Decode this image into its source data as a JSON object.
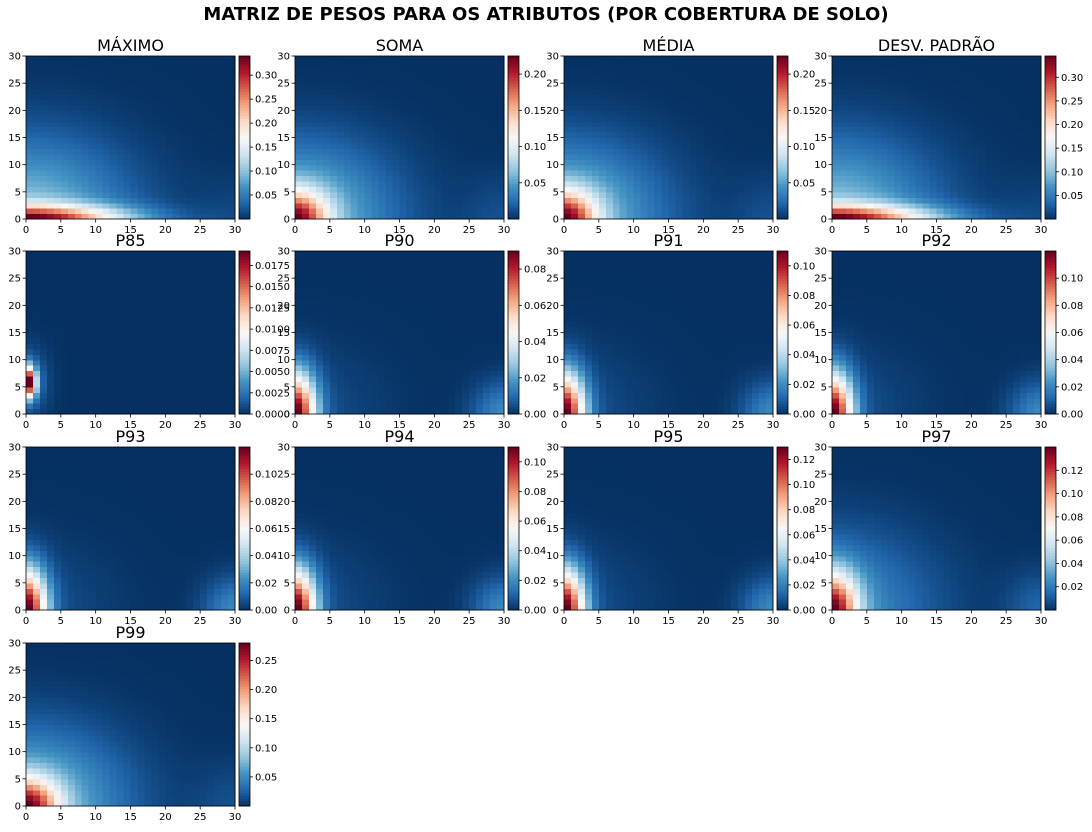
{
  "figure": {
    "title": "MATRIZ DE PESOS PARA OS ATRIBUTOS (POR COBERTURA DE SOLO)",
    "colormap": "RdBu_r",
    "colors": [
      "#053061",
      "#2166ac",
      "#4393c3",
      "#92c5de",
      "#d1e5f0",
      "#f7f7f7",
      "#fddbc7",
      "#f4a582",
      "#d6604d",
      "#b2182b",
      "#67001f"
    ]
  },
  "chart_data": [
    {
      "type": "heatmap",
      "title": "MÁXIMO",
      "xlim": [
        0,
        30
      ],
      "ylim": [
        0,
        30
      ],
      "xticks": [
        "0",
        "5",
        "10",
        "15",
        "20",
        "25",
        "30"
      ],
      "yticks": [
        "0",
        "5",
        "10",
        "15",
        "20",
        "25",
        "30"
      ],
      "colorbar_range": [
        0.0,
        0.34
      ],
      "colorbar_ticks": [
        "0.05",
        "0.10",
        "0.15",
        "0.20",
        "0.25",
        "0.30"
      ],
      "colorbar_tick_values": [
        0.05,
        0.1,
        0.15,
        0.2,
        0.25,
        0.3
      ],
      "pattern": "wide_base"
    },
    {
      "type": "heatmap",
      "title": "SOMA",
      "xlim": [
        0,
        30
      ],
      "ylim": [
        0,
        30
      ],
      "xticks": [
        "0",
        "5",
        "10",
        "15",
        "20",
        "25",
        "30"
      ],
      "yticks": [
        "0",
        "5",
        "10",
        "15",
        "20",
        "25",
        "30"
      ],
      "colorbar_range": [
        0.0,
        0.225
      ],
      "colorbar_ticks": [
        "0.05",
        "0.10",
        "0.15",
        "0.20"
      ],
      "colorbar_tick_values": [
        0.05,
        0.1,
        0.15,
        0.2
      ],
      "pattern": "corner_wide"
    },
    {
      "type": "heatmap",
      "title": "MÉDIA",
      "xlim": [
        0,
        30
      ],
      "ylim": [
        0,
        30
      ],
      "xticks": [
        "0",
        "5",
        "10",
        "15",
        "20",
        "25",
        "30"
      ],
      "yticks": [
        "0",
        "5",
        "10",
        "15",
        "20",
        "25",
        "30"
      ],
      "colorbar_range": [
        0.0,
        0.225
      ],
      "colorbar_ticks": [
        "0.05",
        "0.10",
        "0.15",
        "0.20"
      ],
      "colorbar_tick_values": [
        0.05,
        0.1,
        0.15,
        0.2
      ],
      "pattern": "corner_wide"
    },
    {
      "type": "heatmap",
      "title": "DESV. PADRÃO",
      "xlim": [
        0,
        30
      ],
      "ylim": [
        0,
        30
      ],
      "xticks": [
        "0",
        "5",
        "10",
        "15",
        "20",
        "25",
        "30"
      ],
      "yticks": [
        "0",
        "5",
        "10",
        "15",
        "20",
        "25",
        "30"
      ],
      "colorbar_range": [
        0.0,
        0.345
      ],
      "colorbar_ticks": [
        "0.05",
        "0.10",
        "0.15",
        "0.20",
        "0.25",
        "0.30"
      ],
      "colorbar_tick_values": [
        0.05,
        0.1,
        0.15,
        0.2,
        0.25,
        0.3
      ],
      "pattern": "wide_base"
    },
    {
      "type": "heatmap",
      "title": "P85",
      "xlim": [
        0,
        30
      ],
      "ylim": [
        0,
        30
      ],
      "xticks": [
        "0",
        "5",
        "10",
        "15",
        "20",
        "25",
        "30"
      ],
      "yticks": [
        "0",
        "5",
        "10",
        "15",
        "20",
        "25",
        "30"
      ],
      "colorbar_range": [
        0.0,
        0.0192
      ],
      "colorbar_ticks": [
        "0.0000",
        "0.0025",
        "0.0050",
        "0.0075",
        "0.0100",
        "0.0125",
        "0.0150",
        "0.0175"
      ],
      "colorbar_tick_values": [
        0,
        0.0025,
        0.005,
        0.0075,
        0.01,
        0.0125,
        0.015,
        0.0175
      ],
      "pattern": "spot"
    },
    {
      "type": "heatmap",
      "title": "P90",
      "xlim": [
        0,
        30
      ],
      "ylim": [
        0,
        30
      ],
      "xticks": [
        "0",
        "5",
        "10",
        "15",
        "20",
        "25",
        "30"
      ],
      "yticks": [
        "0",
        "5",
        "10",
        "15",
        "20",
        "25",
        "30"
      ],
      "colorbar_range": [
        0.0,
        0.09
      ],
      "colorbar_ticks": [
        "0.00",
        "0.02",
        "0.04",
        "0.06",
        "0.08"
      ],
      "colorbar_tick_values": [
        0,
        0.02,
        0.04,
        0.06,
        0.08
      ],
      "pattern": "corner_narrow"
    },
    {
      "type": "heatmap",
      "title": "P91",
      "xlim": [
        0,
        30
      ],
      "ylim": [
        0,
        30
      ],
      "xticks": [
        "0",
        "5",
        "10",
        "15",
        "20",
        "25",
        "30"
      ],
      "yticks": [
        "0",
        "5",
        "10",
        "15",
        "20",
        "25",
        "30"
      ],
      "colorbar_range": [
        0.0,
        0.11
      ],
      "colorbar_ticks": [
        "0.00",
        "0.02",
        "0.04",
        "0.06",
        "0.08",
        "0.10"
      ],
      "colorbar_tick_values": [
        0,
        0.02,
        0.04,
        0.06,
        0.08,
        0.1
      ],
      "pattern": "corner_narrow"
    },
    {
      "type": "heatmap",
      "title": "P92",
      "xlim": [
        0,
        30
      ],
      "ylim": [
        0,
        30
      ],
      "xticks": [
        "0",
        "5",
        "10",
        "15",
        "20",
        "25",
        "30"
      ],
      "yticks": [
        "0",
        "5",
        "10",
        "15",
        "20",
        "25",
        "30"
      ],
      "colorbar_range": [
        0.0,
        0.12
      ],
      "colorbar_ticks": [
        "0.00",
        "0.02",
        "0.04",
        "0.06",
        "0.08",
        "0.10"
      ],
      "colorbar_tick_values": [
        0,
        0.02,
        0.04,
        0.06,
        0.08,
        0.1
      ],
      "pattern": "corner_narrow"
    },
    {
      "type": "heatmap",
      "title": "P93",
      "xlim": [
        0,
        30
      ],
      "ylim": [
        0,
        30
      ],
      "xticks": [
        "0",
        "5",
        "10",
        "15",
        "20",
        "25",
        "30"
      ],
      "yticks": [
        "0",
        "5",
        "10",
        "15",
        "20",
        "25",
        "30"
      ],
      "colorbar_range": [
        0.0,
        0.12
      ],
      "colorbar_ticks": [
        "0.00",
        "0.02",
        "0.04",
        "0.06",
        "0.08",
        "0.10"
      ],
      "colorbar_tick_values": [
        0,
        0.02,
        0.04,
        0.06,
        0.08,
        0.1
      ],
      "pattern": "corner_narrow"
    },
    {
      "type": "heatmap",
      "title": "P94",
      "xlim": [
        0,
        30
      ],
      "ylim": [
        0,
        30
      ],
      "xticks": [
        "0",
        "5",
        "10",
        "15",
        "20",
        "25",
        "30"
      ],
      "yticks": [
        "0",
        "5",
        "10",
        "15",
        "20",
        "25",
        "30"
      ],
      "colorbar_range": [
        0.0,
        0.11
      ],
      "colorbar_ticks": [
        "0.00",
        "0.02",
        "0.04",
        "0.06",
        "0.08",
        "0.10"
      ],
      "colorbar_tick_values": [
        0,
        0.02,
        0.04,
        0.06,
        0.08,
        0.1
      ],
      "pattern": "corner_narrow"
    },
    {
      "type": "heatmap",
      "title": "P95",
      "xlim": [
        0,
        30
      ],
      "ylim": [
        0,
        30
      ],
      "xticks": [
        "0",
        "5",
        "10",
        "15",
        "20",
        "25",
        "30"
      ],
      "yticks": [
        "0",
        "5",
        "10",
        "15",
        "20",
        "25",
        "30"
      ],
      "colorbar_range": [
        0.0,
        0.13
      ],
      "colorbar_ticks": [
        "0.00",
        "0.02",
        "0.04",
        "0.06",
        "0.08",
        "0.10",
        "0.12"
      ],
      "colorbar_tick_values": [
        0,
        0.02,
        0.04,
        0.06,
        0.08,
        0.1,
        0.12
      ],
      "pattern": "corner_narrow"
    },
    {
      "type": "heatmap",
      "title": "P97",
      "xlim": [
        0,
        30
      ],
      "ylim": [
        0,
        30
      ],
      "xticks": [
        "0",
        "5",
        "10",
        "15",
        "20",
        "25",
        "30"
      ],
      "yticks": [
        "0",
        "5",
        "10",
        "15",
        "20",
        "25",
        "30"
      ],
      "colorbar_range": [
        0.0,
        0.14
      ],
      "colorbar_ticks": [
        "0.02",
        "0.04",
        "0.06",
        "0.08",
        "0.10",
        "0.12"
      ],
      "colorbar_tick_values": [
        0.02,
        0.04,
        0.06,
        0.08,
        0.1,
        0.12
      ],
      "pattern": "corner_medium"
    },
    {
      "type": "heatmap",
      "title": "P99",
      "xlim": [
        0,
        30
      ],
      "ylim": [
        0,
        30
      ],
      "xticks": [
        "0",
        "5",
        "10",
        "15",
        "20",
        "25",
        "30"
      ],
      "yticks": [
        "0",
        "5",
        "10",
        "15",
        "20",
        "25",
        "30"
      ],
      "colorbar_range": [
        0.0,
        0.28
      ],
      "colorbar_ticks": [
        "0.05",
        "0.10",
        "0.15",
        "0.20",
        "0.25"
      ],
      "colorbar_tick_values": [
        0.05,
        0.1,
        0.15,
        0.2,
        0.25
      ],
      "pattern": "corner_wide"
    }
  ]
}
